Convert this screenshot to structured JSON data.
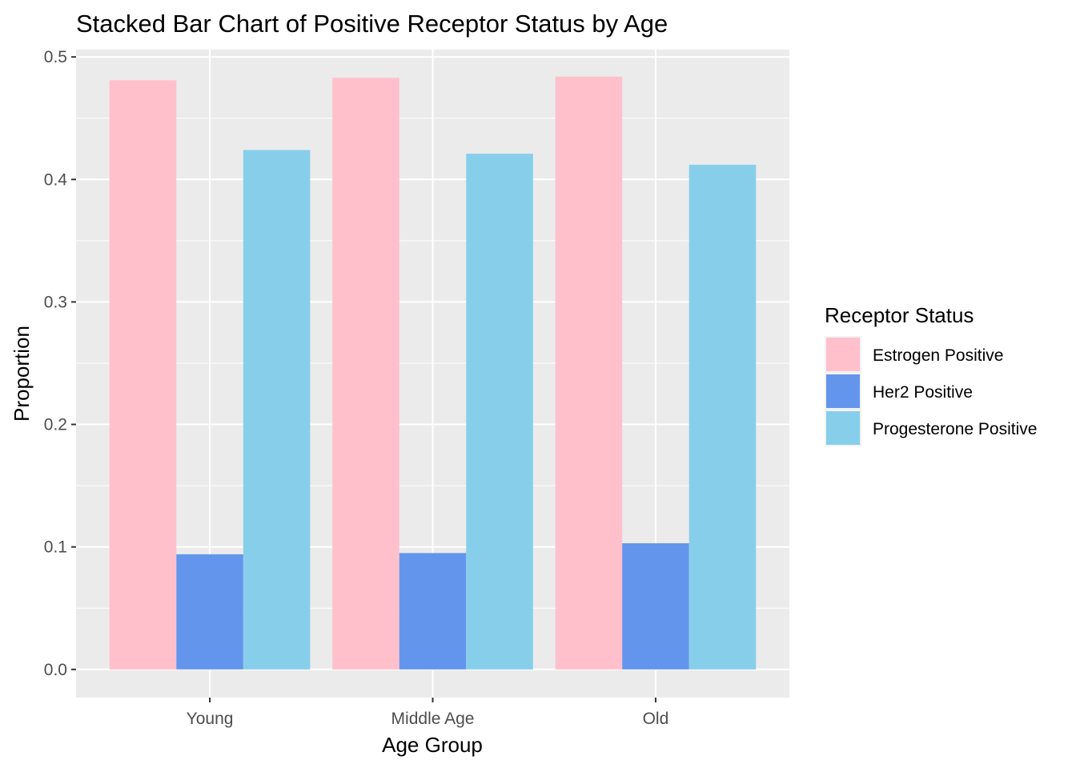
{
  "chart_data": {
    "type": "bar",
    "title": "Stacked Bar Chart of Positive Receptor Status by Age",
    "xlabel": "Age Group",
    "ylabel": "Proportion",
    "categories": [
      "Young",
      "Middle Age",
      "Old"
    ],
    "ylim": [
      -0.023,
      0.506
    ],
    "yticks": [
      0.0,
      0.1,
      0.2,
      0.3,
      0.4,
      0.5
    ],
    "ytick_labels": [
      "0.0",
      "0.1",
      "0.2",
      "0.3",
      "0.4",
      "0.5"
    ],
    "grid": true,
    "legend": {
      "title": "Receptor Status",
      "position": "right"
    },
    "series": [
      {
        "name": "Estrogen Positive",
        "color": "#FFC0CB",
        "values": [
          0.481,
          0.483,
          0.484
        ]
      },
      {
        "name": "Her2 Positive",
        "color": "#6495ED",
        "values": [
          0.094,
          0.095,
          0.103
        ]
      },
      {
        "name": "Progesterone Positive",
        "color": "#87CEEB",
        "values": [
          0.424,
          0.421,
          0.412
        ]
      }
    ]
  }
}
